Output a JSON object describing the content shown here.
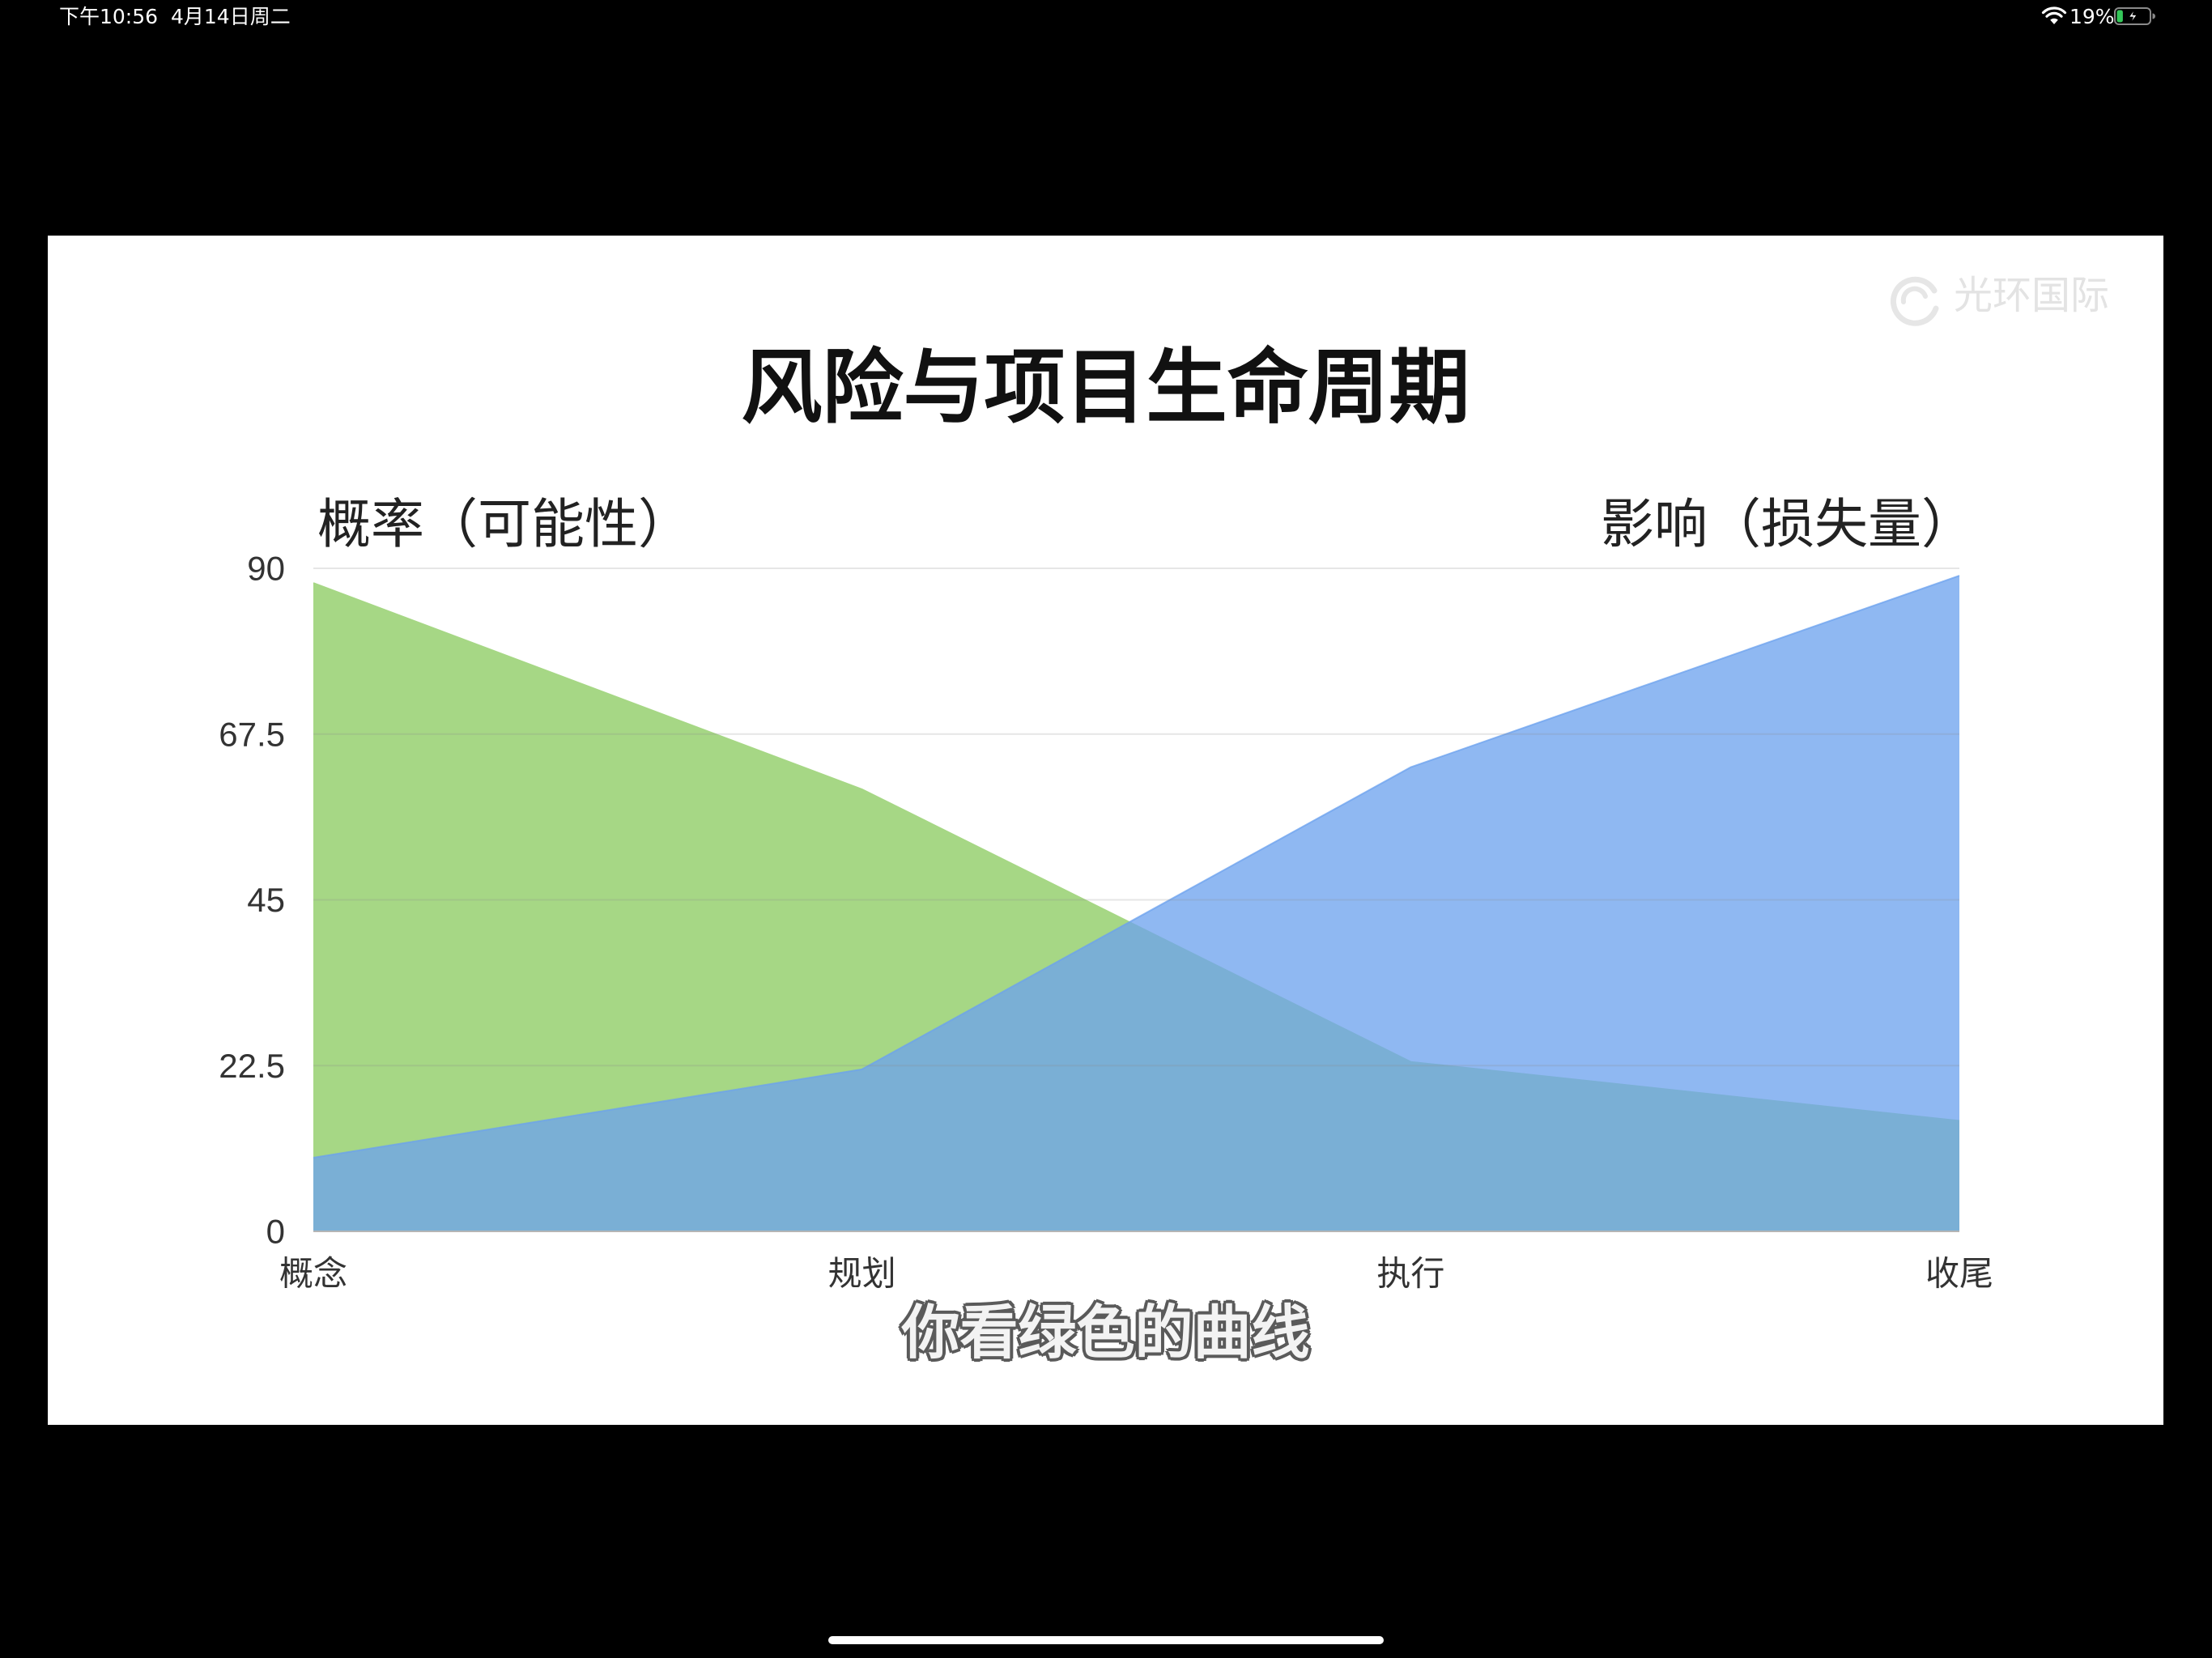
{
  "status_bar": {
    "time": "下午10:56",
    "date": "4月14日周二",
    "battery_percent": "19%",
    "battery_level": 0.19,
    "icons": [
      "wifi-icon",
      "battery-charging-icon"
    ]
  },
  "watermark": {
    "text": "光环国际",
    "icon": "swirl-logo-icon"
  },
  "chart_data": {
    "type": "area",
    "title": "风险与项目生命周期",
    "categories": [
      "概念",
      "规划",
      "执行",
      "收尾"
    ],
    "series": [
      {
        "name": "概率（可能性）",
        "values": [
          88,
          60,
          23,
          15
        ],
        "color": "#a6d785"
      },
      {
        "name": "影响（损失量）",
        "values": [
          10,
          22,
          63,
          89
        ],
        "color": "#6ca2ee"
      }
    ],
    "ylim": [
      0,
      90
    ],
    "y_ticks": [
      0,
      22.5,
      45,
      67.5,
      90
    ],
    "y_tick_labels": [
      "0",
      "22.5",
      "45",
      "67.5",
      "90"
    ],
    "grid": true,
    "legend": "none (series named by axis titles top-left and top-right)"
  },
  "caption": "你看绿色的曲线",
  "colors": {
    "background": "#000000",
    "slide": "#ffffff",
    "grid": "#e3e3e3"
  }
}
